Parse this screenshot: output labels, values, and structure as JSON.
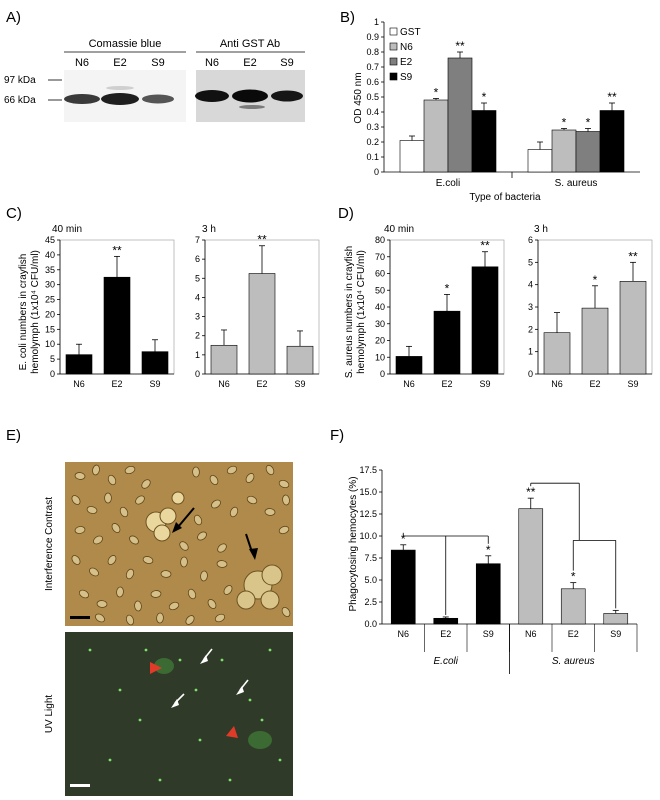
{
  "panels": {
    "A": {
      "letter": "A)",
      "blot_left_title": "Comassie blue",
      "blot_right_title": "Anti GST Ab",
      "lanes": [
        "N6",
        "E2",
        "S9"
      ],
      "markers": [
        "97  kDa",
        "66  kDa"
      ]
    },
    "C": {
      "letter": "C)",
      "time_left": "40 min",
      "time_right": "3 h"
    },
    "D": {
      "letter": "D)",
      "time_left": "40 min",
      "time_right": "3 h"
    },
    "E": {
      "letter": "E)",
      "label_top": "Interference Contrast",
      "label_bottom": "UV Light"
    },
    "F": {
      "letter": "F)"
    }
  },
  "colors": {
    "black": "#000000",
    "light_gray": "#bdbdbd",
    "mid_gray": "#7f7f7f",
    "white": "#ffffff",
    "dic_bg": "#b08a4a",
    "uv_bg": "#2f3a28",
    "arrow_red": "#e23a28"
  },
  "chart_data": [
    {
      "id": "B",
      "type": "bar",
      "letter": "B)",
      "ylabel": "OD 450 nm",
      "xlabel": "Type of bacteria",
      "categories": [
        "E.coli",
        "S. aureus"
      ],
      "ylim": [
        0,
        1
      ],
      "yticks": [
        "0",
        "0.1",
        "0.2",
        "0.3",
        "0.4",
        "0.5",
        "0.6",
        "0.7",
        "0.8",
        "0.9",
        "1"
      ],
      "legend_position": "top-left",
      "series": [
        {
          "name": "GST",
          "values": [
            0.21,
            0.15
          ],
          "errors": [
            0.03,
            0.05
          ],
          "sig": [
            "",
            ""
          ],
          "color": "#ffffff"
        },
        {
          "name": "N6",
          "values": [
            0.48,
            0.28
          ],
          "errors": [
            0.01,
            0.01
          ],
          "sig": [
            "*",
            "*"
          ],
          "color": "#bdbdbd"
        },
        {
          "name": "E2",
          "values": [
            0.76,
            0.27
          ],
          "errors": [
            0.04,
            0.02
          ],
          "sig": [
            "**",
            "*"
          ],
          "color": "#7f7f7f"
        },
        {
          "name": "S9",
          "values": [
            0.41,
            0.41
          ],
          "errors": [
            0.05,
            0.05
          ],
          "sig": [
            "*",
            "**"
          ],
          "color": "#000000"
        }
      ]
    },
    {
      "id": "C40",
      "type": "bar",
      "ylabel_lines": [
        "E. coli numbers in crayfish",
        "hemolymph (1x10⁴ CFU/ml)"
      ],
      "categories": [
        "N6",
        "E2",
        "S9"
      ],
      "values": [
        6.5,
        32.5,
        7.5
      ],
      "errors": [
        3.5,
        7.0,
        4.0
      ],
      "sig": [
        "",
        "**",
        ""
      ],
      "ylim": [
        0,
        45
      ],
      "yticks": [
        "0",
        "5",
        "10",
        "15",
        "20",
        "25",
        "30",
        "35",
        "40",
        "45"
      ],
      "color": "#000000"
    },
    {
      "id": "C3h",
      "type": "bar",
      "categories": [
        "N6",
        "E2",
        "S9"
      ],
      "values": [
        1.5,
        5.25,
        1.45
      ],
      "errors": [
        0.8,
        1.45,
        0.8
      ],
      "sig": [
        "",
        "**",
        ""
      ],
      "ylim": [
        0,
        7
      ],
      "yticks": [
        "0",
        "1",
        "2",
        "3",
        "4",
        "5",
        "6",
        "7"
      ],
      "color": "#bdbdbd"
    },
    {
      "id": "D40",
      "type": "bar",
      "ylabel_lines": [
        "S. aureus numbers in crayfish",
        "hemolymph (1x10⁴ CFU/ml)"
      ],
      "categories": [
        "N6",
        "E2",
        "S9"
      ],
      "values": [
        10.5,
        37.5,
        64
      ],
      "errors": [
        6,
        10,
        9
      ],
      "sig": [
        "",
        "*",
        "**"
      ],
      "ylim": [
        0,
        80
      ],
      "yticks": [
        "0",
        "10",
        "20",
        "30",
        "40",
        "50",
        "60",
        "70",
        "80"
      ],
      "color": "#000000"
    },
    {
      "id": "D3h",
      "type": "bar",
      "categories": [
        "N6",
        "E2",
        "S9"
      ],
      "values": [
        1.85,
        2.95,
        4.15
      ],
      "errors": [
        0.9,
        1.0,
        0.85
      ],
      "sig": [
        "",
        "*",
        "**"
      ],
      "ylim": [
        0,
        6
      ],
      "yticks": [
        "0",
        "1",
        "2",
        "3",
        "4",
        "5",
        "6"
      ],
      "color": "#bdbdbd"
    },
    {
      "id": "F",
      "type": "bar",
      "ylabel": "Phagocytosing hemocytes (%)",
      "categories": [
        "N6",
        "E2",
        "S9",
        "N6",
        "E2",
        "S9"
      ],
      "groups": [
        "E.coli",
        "S. aureus"
      ],
      "values": [
        8.4,
        0.65,
        6.85,
        13.1,
        4.0,
        1.2
      ],
      "errors": [
        0.6,
        0.15,
        0.9,
        1.2,
        0.7,
        0.35
      ],
      "sig": [
        "*",
        "",
        "*",
        "**",
        "*",
        ""
      ],
      "colors": [
        "#000000",
        "#000000",
        "#000000",
        "#bdbdbd",
        "#bdbdbd",
        "#bdbdbd"
      ],
      "ylim": [
        0,
        17.5
      ],
      "yticks": [
        "0.0",
        "2.5",
        "5.0",
        "7.5",
        "10.0",
        "12.5",
        "15.0",
        "17.5"
      ]
    }
  ]
}
